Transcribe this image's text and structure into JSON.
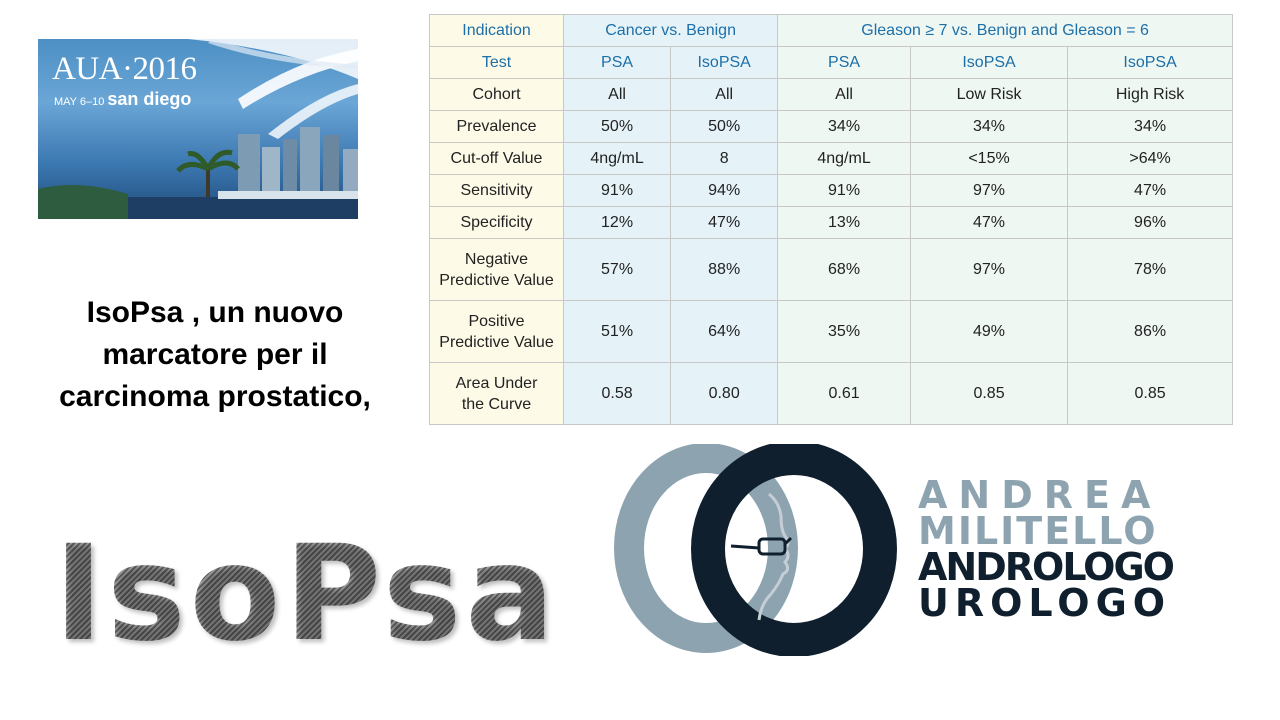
{
  "banner": {
    "title": "AUA·2016",
    "dates": "MAY 6–10",
    "city": "san diego"
  },
  "subtitle": {
    "lines": [
      "IsoPsa , un nuovo",
      "marcatore per il",
      "carcinoma prostatico,"
    ]
  },
  "big_title": "IsoPsa",
  "table": {
    "indication_label": "Indication",
    "indication_groups": [
      "Cancer vs. Benign",
      "Gleason ≥ 7 vs. Benign and Gleason = 6"
    ],
    "test_label": "Test",
    "tests": [
      "PSA",
      "IsoPSA",
      "PSA",
      "IsoPSA",
      "IsoPSA"
    ],
    "rows": [
      {
        "label": "Cohort",
        "values": [
          "All",
          "All",
          "All",
          "Low Risk",
          "High Risk"
        ]
      },
      {
        "label": "Prevalence",
        "values": [
          "50%",
          "50%",
          "34%",
          "34%",
          "34%"
        ]
      },
      {
        "label": "Cut-off Value",
        "values": [
          "4ng/mL",
          "8",
          "4ng/mL",
          "<15%",
          ">64%"
        ]
      },
      {
        "label": "Sensitivity",
        "values": [
          "91%",
          "94%",
          "91%",
          "97%",
          "47%"
        ]
      },
      {
        "label": "Specificity",
        "values": [
          "12%",
          "47%",
          "13%",
          "47%",
          "96%"
        ]
      },
      {
        "label_lines": [
          "Negative",
          "Predictive Value"
        ],
        "values": [
          "57%",
          "88%",
          "68%",
          "97%",
          "78%"
        ]
      },
      {
        "label_lines": [
          "Positive",
          "Predictive Value"
        ],
        "values": [
          "51%",
          "64%",
          "35%",
          "49%",
          "86%"
        ]
      },
      {
        "label_lines": [
          "Area Under",
          "the Curve"
        ],
        "values": [
          "0.58",
          "0.80",
          "0.61",
          "0.85",
          "0.85"
        ]
      }
    ]
  },
  "logo": {
    "lines": [
      "ANDREA",
      "MILITELLO",
      "ANDROLOGO",
      "UROLOGO"
    ]
  },
  "colors": {
    "table_header_text": "#1d6fa8",
    "label_column_bg": "#fdfae8",
    "group_a_bg": "#e5f3f9",
    "group_b_bg": "#eef7f2",
    "logo_light": "#8ea3b0",
    "logo_dark": "#0f1f2e"
  }
}
